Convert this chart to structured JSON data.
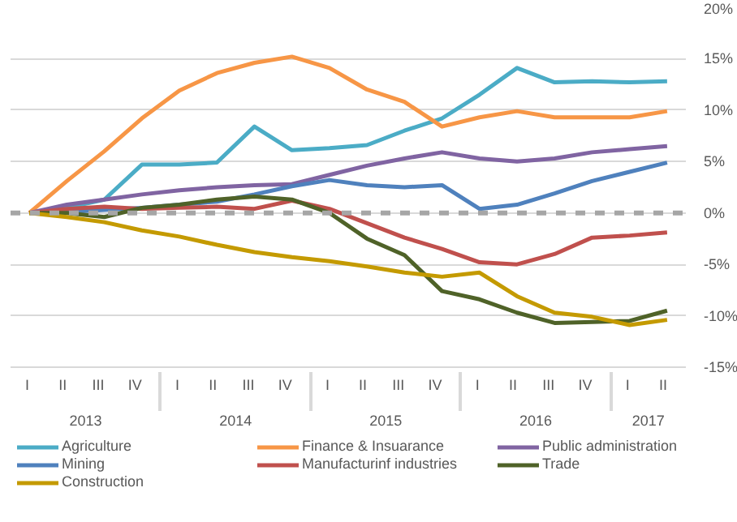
{
  "chart_data": {
    "type": "line",
    "categories": [
      "I",
      "II",
      "III",
      "IV",
      "I",
      "II",
      "III",
      "IV",
      "I",
      "II",
      "III",
      "IV",
      "I",
      "II",
      "III",
      "IV",
      "I",
      "II"
    ],
    "annotations": [
      "2013",
      "2014",
      "2015",
      "2016",
      "2017"
    ],
    "ylim": [
      -15,
      20
    ],
    "yticks": [
      {
        "value": -15,
        "label": "-15%"
      },
      {
        "value": -10,
        "label": "-10%"
      },
      {
        "value": -5,
        "label": "-5%"
      },
      {
        "value": 0,
        "label": "0%"
      },
      {
        "value": 5,
        "label": "5%"
      },
      {
        "value": 10,
        "label": "10%"
      },
      {
        "value": 15,
        "label": "15%"
      },
      {
        "value": 20,
        "label": "20%"
      }
    ],
    "grid": "y",
    "legend": "bottom",
    "line_style": "solid",
    "marker": "none",
    "ref_lines": [
      {
        "axis": "y",
        "value": 0,
        "color": "#a6a6a6",
        "line_style": "dashed"
      }
    ],
    "series": [
      {
        "name": "Agriculture",
        "color": "#4bacc6",
        "values": [
          0,
          0.5,
          1.3,
          4.7,
          4.7,
          4.9,
          8.4,
          6.1,
          6.3,
          6.6,
          8.0,
          9.2,
          11.5,
          14.1,
          12.7,
          12.8,
          12.7,
          12.8
        ]
      },
      {
        "name": "Finance & Insuarance",
        "color": "#f79646",
        "values": [
          0,
          3.1,
          6.0,
          9.2,
          11.9,
          13.6,
          14.6,
          15.2,
          14.1,
          12.0,
          10.8,
          8.4,
          9.3,
          9.9,
          9.3,
          9.3,
          9.3,
          9.9
        ]
      },
      {
        "name": "Public administration",
        "color": "#8064a2",
        "values": [
          0,
          0.8,
          1.3,
          1.8,
          2.2,
          2.5,
          2.7,
          2.8,
          3.7,
          4.6,
          5.3,
          5.9,
          5.3,
          5.0,
          5.3,
          5.9,
          6.2,
          6.5
        ]
      },
      {
        "name": "Mining",
        "color": "#4f81bd",
        "values": [
          0,
          0.1,
          0.3,
          0.5,
          0.8,
          1.1,
          1.8,
          2.6,
          3.2,
          2.7,
          2.5,
          2.7,
          0.4,
          0.8,
          1.9,
          3.1,
          4.0,
          4.9
        ]
      },
      {
        "name": "Manufacturinf industries",
        "color": "#c0504d",
        "values": [
          0,
          0.4,
          0.6,
          0.4,
          0.5,
          0.6,
          0.4,
          1.2,
          0.4,
          -1.0,
          -2.4,
          -3.5,
          -4.8,
          -5.0,
          -4.0,
          -2.4,
          -2.2,
          -1.9
        ]
      },
      {
        "name": "Trade",
        "color": "#4f6228",
        "values": [
          0,
          0,
          -0.4,
          0.5,
          0.8,
          1.3,
          1.6,
          1.3,
          0,
          -2.5,
          -4.1,
          -7.6,
          -8.4,
          -9.7,
          -10.7,
          -10.6,
          -10.5,
          -9.5
        ]
      },
      {
        "name": "Construction",
        "color": "#c49a00",
        "values": [
          0,
          -0.4,
          -0.9,
          -1.7,
          -2.3,
          -3.1,
          -3.8,
          -4.3,
          -4.7,
          -5.2,
          -5.8,
          -6.2,
          -5.8,
          -8.1,
          -9.7,
          -10.1,
          -10.9,
          -10.4
        ]
      }
    ]
  }
}
